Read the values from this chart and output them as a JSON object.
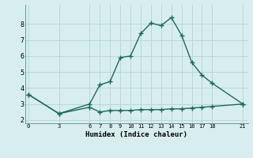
{
  "line1_x": [
    0,
    3,
    6,
    7,
    8,
    9,
    10,
    11,
    12,
    13,
    14,
    15,
    16,
    17,
    18,
    21
  ],
  "line1_y": [
    3.6,
    2.4,
    3.0,
    4.2,
    4.4,
    5.9,
    6.0,
    7.4,
    8.05,
    7.9,
    8.4,
    7.3,
    5.6,
    4.8,
    4.3,
    3.0
  ],
  "line2_x": [
    0,
    3,
    6,
    7,
    8,
    9,
    10,
    11,
    12,
    13,
    14,
    15,
    16,
    17,
    18,
    21
  ],
  "line2_y": [
    3.6,
    2.4,
    2.8,
    2.5,
    2.6,
    2.6,
    2.6,
    2.65,
    2.65,
    2.65,
    2.7,
    2.7,
    2.75,
    2.8,
    2.85,
    3.0
  ],
  "line_color": "#1a6b5a",
  "bg_color": "#d8eeee",
  "grid_color": "#b8d8d8",
  "xlabel": "Humidex (Indice chaleur)",
  "xticks": [
    0,
    3,
    6,
    7,
    8,
    9,
    10,
    11,
    12,
    13,
    14,
    15,
    16,
    17,
    18,
    21
  ],
  "yticks": [
    2,
    3,
    4,
    5,
    6,
    7,
    8
  ],
  "ylim": [
    1.8,
    9.2
  ],
  "xlim": [
    -0.3,
    21.5
  ]
}
